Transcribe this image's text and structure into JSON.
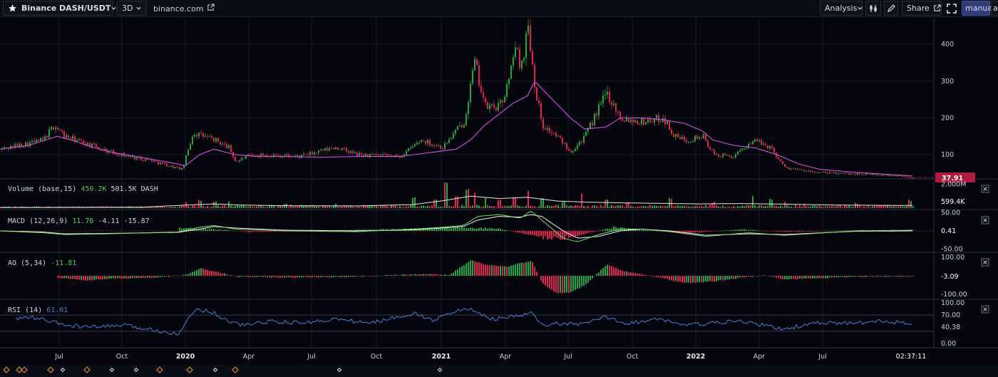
{
  "toolbar": {
    "symbol": "Binance DASH/USDT",
    "timeframe": "3D",
    "source": "binance.com",
    "analysis_label": "Analysis",
    "share_label": "Share",
    "manual_label": "manual",
    "auto_label": "au"
  },
  "colors": {
    "background": "#05060d",
    "up": "#26a641",
    "down": "#e0244f",
    "ma": "#d84fe0",
    "rsi": "#4a7fd8",
    "price_tag": "#b01a3c"
  },
  "icons": [
    "star-icon",
    "chevron-down-icon",
    "external-link-icon",
    "indicators-icon",
    "pencil-icon",
    "fullscreen-icon",
    "close-icon"
  ],
  "chart_data": [
    {
      "type": "candlestick",
      "id": "price",
      "ticks": [
        "400",
        "300",
        "200",
        "100"
      ],
      "ylim": [
        40,
        470
      ],
      "last_price": "37.91",
      "points": [
        [
          0,
          115
        ],
        [
          60,
          140
        ],
        [
          75,
          180
        ],
        [
          90,
          150
        ],
        [
          120,
          130
        ],
        [
          150,
          110
        ],
        [
          180,
          95
        ],
        [
          210,
          85
        ],
        [
          235,
          70
        ],
        [
          255,
          60
        ],
        [
          270,
          160
        ],
        [
          300,
          140
        ],
        [
          320,
          120
        ],
        [
          330,
          80
        ],
        [
          345,
          95
        ],
        [
          370,
          100
        ],
        [
          420,
          95
        ],
        [
          470,
          120
        ],
        [
          500,
          100
        ],
        [
          560,
          95
        ],
        [
          590,
          140
        ],
        [
          620,
          120
        ],
        [
          650,
          190
        ],
        [
          665,
          350
        ],
        [
          680,
          230
        ],
        [
          700,
          230
        ],
        [
          715,
          310
        ],
        [
          720,
          400
        ],
        [
          730,
          340
        ],
        [
          740,
          450
        ],
        [
          750,
          280
        ],
        [
          760,
          180
        ],
        [
          780,
          150
        ],
        [
          800,
          110
        ],
        [
          820,
          150
        ],
        [
          850,
          270
        ],
        [
          870,
          200
        ],
        [
          900,
          190
        ],
        [
          930,
          200
        ],
        [
          945,
          150
        ],
        [
          960,
          140
        ],
        [
          985,
          150
        ],
        [
          1000,
          100
        ],
        [
          1030,
          95
        ],
        [
          1055,
          140
        ],
        [
          1080,
          120
        ],
        [
          1100,
          65
        ],
        [
          1130,
          55
        ],
        [
          1160,
          50
        ],
        [
          1200,
          48
        ],
        [
          1240,
          45
        ],
        [
          1280,
          38
        ]
      ],
      "ma": [
        [
          0,
          115
        ],
        [
          40,
          125
        ],
        [
          80,
          150
        ],
        [
          100,
          140
        ],
        [
          130,
          120
        ],
        [
          160,
          105
        ],
        [
          200,
          92
        ],
        [
          240,
          78
        ],
        [
          260,
          70
        ],
        [
          280,
          100
        ],
        [
          300,
          115
        ],
        [
          330,
          100
        ],
        [
          360,
          95
        ],
        [
          400,
          95
        ],
        [
          450,
          93
        ],
        [
          500,
          95
        ],
        [
          560,
          95
        ],
        [
          600,
          105
        ],
        [
          640,
          115
        ],
        [
          660,
          140
        ],
        [
          680,
          180
        ],
        [
          700,
          210
        ],
        [
          720,
          240
        ],
        [
          740,
          260
        ],
        [
          750,
          300
        ],
        [
          760,
          280
        ],
        [
          780,
          240
        ],
        [
          800,
          200
        ],
        [
          820,
          170
        ],
        [
          850,
          175
        ],
        [
          870,
          200
        ],
        [
          900,
          200
        ],
        [
          930,
          195
        ],
        [
          960,
          185
        ],
        [
          985,
          165
        ],
        [
          1000,
          140
        ],
        [
          1030,
          125
        ],
        [
          1060,
          118
        ],
        [
          1090,
          100
        ],
        [
          1120,
          75
        ],
        [
          1150,
          60
        ],
        [
          1200,
          52
        ],
        [
          1240,
          47
        ],
        [
          1280,
          42
        ]
      ]
    },
    {
      "type": "bar",
      "id": "volume",
      "title": "Volume (base,15)",
      "value_up": "450.2K",
      "value": "501.5K DASH",
      "ticks": [
        "2.000M"
      ],
      "last_value": "599.4K",
      "ylim": [
        0,
        2200000
      ],
      "bars": [
        [
          260,
          400000
        ],
        [
          280,
          600000
        ],
        [
          300,
          500000
        ],
        [
          320,
          450000
        ],
        [
          400,
          300000
        ],
        [
          470,
          350000
        ],
        [
          580,
          800000
        ],
        [
          610,
          600000
        ],
        [
          625,
          2100000
        ],
        [
          640,
          900000
        ],
        [
          655,
          1500000
        ],
        [
          665,
          1200000
        ],
        [
          680,
          800000
        ],
        [
          700,
          600000
        ],
        [
          720,
          900000
        ],
        [
          740,
          1400000
        ],
        [
          760,
          700000
        ],
        [
          790,
          400000
        ],
        [
          815,
          1100000
        ],
        [
          850,
          600000
        ],
        [
          880,
          400000
        ],
        [
          940,
          700000
        ],
        [
          1000,
          400000
        ],
        [
          1055,
          900000
        ],
        [
          1080,
          700000
        ],
        [
          1100,
          500000
        ],
        [
          1200,
          300000
        ],
        [
          1275,
          600000
        ]
      ],
      "vol_ma": [
        [
          0,
          50000
        ],
        [
          200,
          80000
        ],
        [
          260,
          250000
        ],
        [
          300,
          350000
        ],
        [
          340,
          250000
        ],
        [
          400,
          200000
        ],
        [
          500,
          180000
        ],
        [
          580,
          300000
        ],
        [
          620,
          600000
        ],
        [
          660,
          1000000
        ],
        [
          700,
          800000
        ],
        [
          740,
          900000
        ],
        [
          780,
          600000
        ],
        [
          820,
          500000
        ],
        [
          860,
          450000
        ],
        [
          920,
          400000
        ],
        [
          980,
          350000
        ],
        [
          1040,
          380000
        ],
        [
          1100,
          330000
        ],
        [
          1180,
          250000
        ],
        [
          1280,
          220000
        ]
      ]
    },
    {
      "type": "line",
      "id": "macd",
      "title": "MACD (12,26,9)",
      "values": [
        "11.76",
        "-4.11",
        "-15.87"
      ],
      "ticks": [
        "50.00",
        "-50.00"
      ],
      "last_value": "0.41",
      "ylim": [
        -55,
        55
      ],
      "macd": [
        [
          0,
          0
        ],
        [
          60,
          -5
        ],
        [
          90,
          -10
        ],
        [
          150,
          -8
        ],
        [
          250,
          -3
        ],
        [
          280,
          10
        ],
        [
          300,
          15
        ],
        [
          330,
          5
        ],
        [
          400,
          0
        ],
        [
          500,
          -2
        ],
        [
          580,
          5
        ],
        [
          620,
          10
        ],
        [
          650,
          15
        ],
        [
          670,
          40
        ],
        [
          700,
          45
        ],
        [
          730,
          35
        ],
        [
          745,
          55
        ],
        [
          760,
          30
        ],
        [
          790,
          -20
        ],
        [
          810,
          -30
        ],
        [
          840,
          -10
        ],
        [
          870,
          5
        ],
        [
          900,
          5
        ],
        [
          940,
          -2
        ],
        [
          990,
          -15
        ],
        [
          1050,
          -5
        ],
        [
          1100,
          -12
        ],
        [
          1200,
          0
        ],
        [
          1280,
          2
        ]
      ],
      "signal": [
        [
          0,
          0
        ],
        [
          60,
          -3
        ],
        [
          90,
          -8
        ],
        [
          150,
          -7
        ],
        [
          250,
          -4
        ],
        [
          280,
          5
        ],
        [
          300,
          12
        ],
        [
          330,
          8
        ],
        [
          400,
          2
        ],
        [
          500,
          0
        ],
        [
          580,
          3
        ],
        [
          620,
          8
        ],
        [
          650,
          12
        ],
        [
          670,
          30
        ],
        [
          700,
          40
        ],
        [
          730,
          38
        ],
        [
          745,
          45
        ],
        [
          760,
          40
        ],
        [
          790,
          0
        ],
        [
          810,
          -20
        ],
        [
          840,
          -15
        ],
        [
          870,
          0
        ],
        [
          900,
          5
        ],
        [
          940,
          0
        ],
        [
          990,
          -12
        ],
        [
          1050,
          -8
        ],
        [
          1100,
          -10
        ],
        [
          1200,
          -1
        ],
        [
          1280,
          0
        ]
      ],
      "hist": [
        [
          260,
          8
        ],
        [
          300,
          5
        ],
        [
          350,
          -3
        ],
        [
          580,
          6
        ],
        [
          640,
          10
        ],
        [
          700,
          6
        ],
        [
          760,
          -18
        ],
        [
          790,
          -20
        ],
        [
          820,
          -8
        ],
        [
          860,
          10
        ],
        [
          900,
          3
        ],
        [
          960,
          -6
        ],
        [
          1040,
          4
        ],
        [
          1100,
          -3
        ],
        [
          1200,
          2
        ]
      ]
    },
    {
      "type": "bar",
      "id": "ao",
      "title": "AO (5,34)",
      "value": "-11.81",
      "ticks": [
        "100.00",
        "-100.00"
      ],
      "last_value": "-3.09",
      "ylim": [
        -120,
        120
      ],
      "bars": [
        [
          0,
          0
        ],
        [
          80,
          -10
        ],
        [
          120,
          -25
        ],
        [
          160,
          -15
        ],
        [
          220,
          -10
        ],
        [
          260,
          5
        ],
        [
          280,
          40
        ],
        [
          300,
          25
        ],
        [
          330,
          -5
        ],
        [
          400,
          -10
        ],
        [
          500,
          -5
        ],
        [
          590,
          10
        ],
        [
          630,
          5
        ],
        [
          660,
          85
        ],
        [
          680,
          60
        ],
        [
          710,
          50
        ],
        [
          730,
          70
        ],
        [
          745,
          80
        ],
        [
          760,
          -40
        ],
        [
          780,
          -95
        ],
        [
          800,
          -90
        ],
        [
          820,
          -50
        ],
        [
          850,
          60
        ],
        [
          880,
          20
        ],
        [
          920,
          -5
        ],
        [
          960,
          -40
        ],
        [
          1000,
          -30
        ],
        [
          1040,
          -10
        ],
        [
          1070,
          5
        ],
        [
          1100,
          -20
        ],
        [
          1200,
          -5
        ],
        [
          1280,
          -3
        ]
      ]
    },
    {
      "type": "line",
      "id": "rsi",
      "title": "RSI (14)",
      "value": "61.01",
      "ticks": [
        "100.00",
        "70.00",
        "40.38",
        "0.00"
      ],
      "ylim": [
        -5,
        105
      ],
      "rsi": [
        [
          0,
          55
        ],
        [
          40,
          65
        ],
        [
          70,
          55
        ],
        [
          90,
          45
        ],
        [
          130,
          40
        ],
        [
          170,
          45
        ],
        [
          210,
          35
        ],
        [
          250,
          25
        ],
        [
          275,
          85
        ],
        [
          295,
          80
        ],
        [
          320,
          55
        ],
        [
          340,
          45
        ],
        [
          380,
          55
        ],
        [
          420,
          50
        ],
        [
          470,
          60
        ],
        [
          520,
          50
        ],
        [
          580,
          75
        ],
        [
          610,
          55
        ],
        [
          625,
          75
        ],
        [
          660,
          85
        ],
        [
          690,
          60
        ],
        [
          720,
          65
        ],
        [
          745,
          75
        ],
        [
          760,
          45
        ],
        [
          790,
          50
        ],
        [
          810,
          45
        ],
        [
          850,
          65
        ],
        [
          880,
          50
        ],
        [
          930,
          60
        ],
        [
          960,
          45
        ],
        [
          1000,
          50
        ],
        [
          1040,
          55
        ],
        [
          1100,
          35
        ],
        [
          1140,
          50
        ],
        [
          1200,
          50
        ],
        [
          1240,
          55
        ],
        [
          1280,
          48
        ]
      ]
    }
  ],
  "time_axis": {
    "labels": [
      "Jul",
      "Oct",
      "2020",
      "Apr",
      "Jul",
      "Oct",
      "2021",
      "Apr",
      "Jul",
      "Oct",
      "2022",
      "Apr",
      "Jul"
    ],
    "clock": "02:37:11"
  }
}
